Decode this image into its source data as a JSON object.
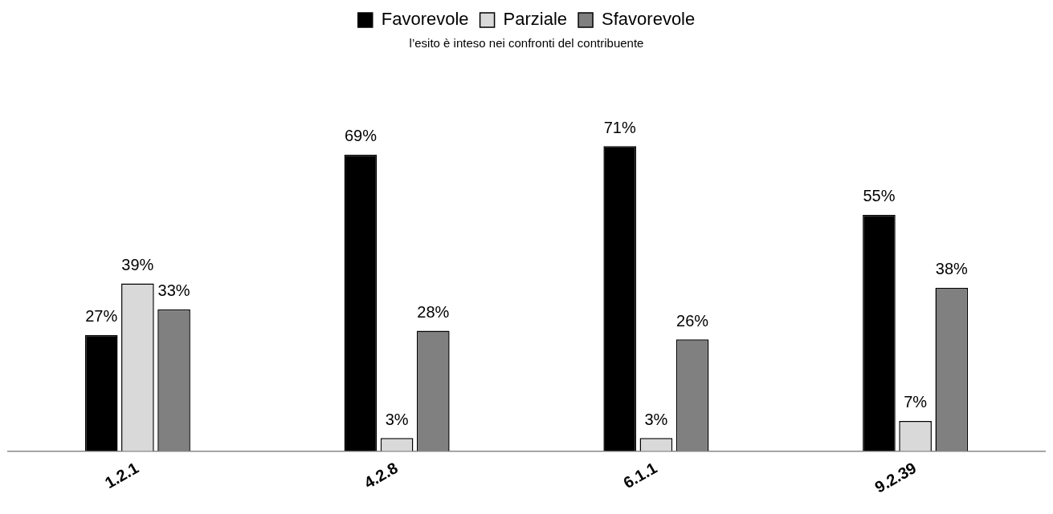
{
  "chart_data": {
    "type": "bar",
    "subtitle": "l’esito è inteso nei confronti del contribuente",
    "categories": [
      "1.2.1",
      "4.2.8",
      "6.1.1",
      "9.2.39"
    ],
    "series": [
      {
        "name": "Favorevole",
        "color": "#000000",
        "values": [
          27,
          69,
          71,
          55
        ],
        "value_labels": [
          "27%",
          "69%",
          "71%",
          "55%"
        ]
      },
      {
        "name": "Parziale",
        "color": "#d9d9d9",
        "values": [
          39,
          3,
          3,
          7
        ],
        "value_labels": [
          "39%",
          "3%",
          "3%",
          "7%"
        ]
      },
      {
        "name": "Sfavorevole",
        "color": "#808080",
        "values": [
          33,
          28,
          26,
          38
        ],
        "value_labels": [
          "33%",
          "28%",
          "26%",
          "38%"
        ]
      }
    ],
    "legend": "top",
    "grid": false
  }
}
